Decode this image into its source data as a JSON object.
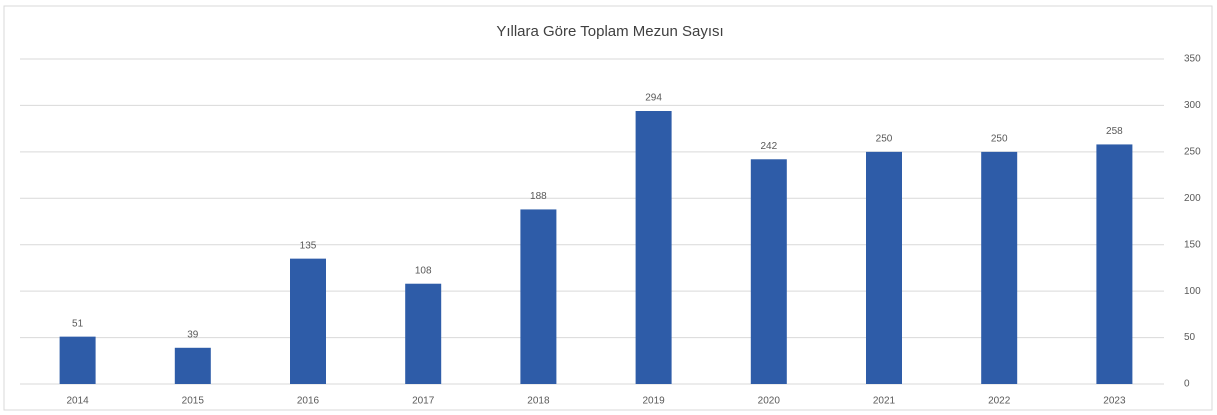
{
  "chart_data": {
    "type": "bar",
    "title": "Yıllara Göre Toplam Mezun Sayısı",
    "categories": [
      "2014",
      "2015",
      "2016",
      "2017",
      "2018",
      "2019",
      "2020",
      "2021",
      "2022",
      "2023"
    ],
    "values": [
      51,
      39,
      135,
      108,
      188,
      294,
      242,
      250,
      250,
      258
    ],
    "color": "#2e5ca8",
    "ylim": [
      0,
      350
    ],
    "yticks": [
      0,
      50,
      100,
      150,
      200,
      250,
      300,
      350
    ],
    "grid": true,
    "y_axis_side": "right"
  }
}
